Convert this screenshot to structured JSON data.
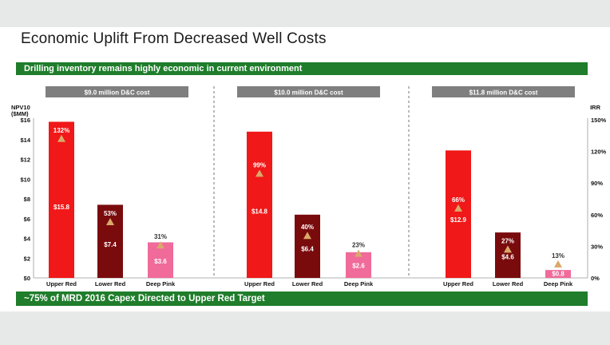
{
  "title": "Economic Uplift From Decreased Well Costs",
  "subtitle_banner": "Drilling inventory remains highly economic in current environment",
  "bottom_banner": "~75% of MRD 2016 Capex Directed to Upper Red Target",
  "colors": {
    "banner_green": "#1f7d2b",
    "upper_red": "#f01818",
    "lower_red": "#7a0b0d",
    "deep_pink": "#f06a9a",
    "irr_marker": "#d9a96a",
    "group_header": "#7f7f7f"
  },
  "chart_data": {
    "type": "bar",
    "ylabel_left": "NPV10 ($MM)",
    "ylabel_right": "IRR",
    "ylim_left": [
      0,
      16
    ],
    "ylim_right": [
      0,
      150
    ],
    "left_ticks": [
      "$16",
      "$14",
      "$12",
      "$10",
      "$8",
      "$6",
      "$4",
      "$2",
      "$0"
    ],
    "right_ticks": [
      "150%",
      "120%",
      "90%",
      "60%",
      "30%",
      "0%"
    ],
    "groups": [
      {
        "header": "$9.0 million D&C cost",
        "categories": [
          "Upper Red",
          "Lower Red",
          "Deep Pink"
        ],
        "npv": [
          15.8,
          7.4,
          3.6
        ],
        "npv_labels": [
          "$15.8",
          "$7.4",
          "$3.6"
        ],
        "irr": [
          132,
          53,
          31
        ],
        "irr_labels": [
          "132%",
          "53%",
          "31%"
        ]
      },
      {
        "header": "$10.0 million D&C cost",
        "categories": [
          "Upper Red",
          "Lower Red",
          "Deep Pink"
        ],
        "npv": [
          14.8,
          6.4,
          2.6
        ],
        "npv_labels": [
          "$14.8",
          "$6.4",
          "$2.6"
        ],
        "irr": [
          99,
          40,
          23
        ],
        "irr_labels": [
          "99%",
          "40%",
          "23%"
        ]
      },
      {
        "header": "$11.8 million D&C cost",
        "categories": [
          "Upper Red",
          "Lower Red",
          "Deep Pink"
        ],
        "npv": [
          12.9,
          4.6,
          0.8
        ],
        "npv_labels": [
          "$12.9",
          "$4.6",
          "$0.8"
        ],
        "irr": [
          66,
          27,
          13
        ],
        "irr_labels": [
          "66%",
          "27%",
          "13%"
        ]
      }
    ]
  }
}
